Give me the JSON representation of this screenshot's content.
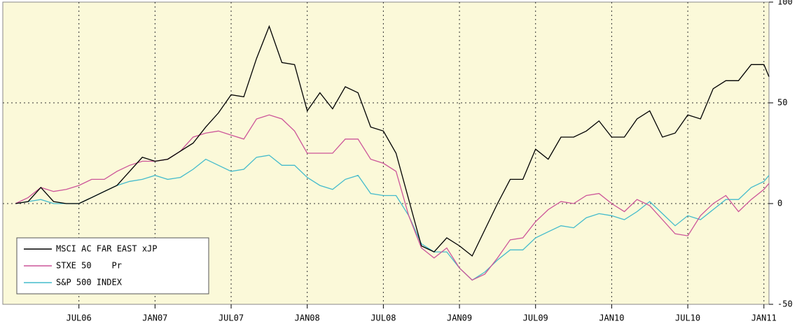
{
  "chart_data": {
    "type": "line",
    "x": [
      1,
      2,
      3,
      4,
      5,
      6,
      7,
      8,
      9,
      10,
      11,
      12,
      13,
      14,
      15,
      16,
      17,
      18,
      19,
      20,
      21,
      22,
      23,
      24,
      25,
      26,
      27,
      28,
      29,
      30,
      31,
      32,
      33,
      34,
      35,
      36,
      37,
      38,
      39,
      40,
      41,
      42,
      43,
      44,
      45,
      46,
      47,
      48,
      49,
      50,
      51,
      52,
      53,
      54,
      55,
      56,
      57,
      58,
      59,
      60,
      60.4
    ],
    "series": [
      {
        "name": "MSCI AC FAR EAST xJP",
        "color": "#000000",
        "values": [
          0,
          1,
          8,
          1,
          0,
          0,
          3,
          6,
          9,
          16,
          23,
          21,
          22,
          26,
          30,
          38,
          45,
          54,
          53,
          72,
          88,
          70,
          69,
          46,
          55,
          47,
          58,
          55,
          38,
          36,
          25,
          2,
          -21,
          -24,
          -17,
          -21,
          -26,
          -13,
          0,
          12,
          12,
          27,
          22,
          33,
          33,
          36,
          41,
          33,
          33,
          42,
          46,
          33,
          35,
          44,
          42,
          57,
          61,
          61,
          69,
          69,
          63
        ]
      },
      {
        "name": "STXE 50    Pr",
        "color": "#cc5599",
        "values": [
          0,
          3,
          8,
          6,
          7,
          9,
          12,
          12,
          16,
          19,
          21,
          21,
          22,
          26,
          33,
          35,
          36,
          34,
          32,
          42,
          44,
          42,
          36,
          25,
          25,
          25,
          32,
          32,
          22,
          20,
          16,
          -6,
          -22,
          -27,
          -22,
          -32,
          -38,
          -35,
          -27,
          -18,
          -17,
          -9,
          -3,
          1,
          0,
          4,
          5,
          0,
          -4,
          2,
          -1,
          -8,
          -15,
          -16,
          -6,
          0,
          4,
          -4,
          2,
          7,
          10
        ]
      },
      {
        "name": "S&P 500 INDEX",
        "color": "#44bbcc",
        "values": [
          0,
          1,
          2,
          0,
          0,
          0,
          3,
          6,
          9,
          11,
          12,
          14,
          12,
          13,
          17,
          22,
          19,
          16,
          17,
          23,
          24,
          19,
          19,
          13,
          9,
          7,
          12,
          14,
          5,
          4,
          4,
          -6,
          -20,
          -24,
          -24,
          -32,
          -38,
          -34,
          -28,
          -23,
          -23,
          -17,
          -14,
          -11,
          -12,
          -7,
          -5,
          -6,
          -8,
          -4,
          1,
          -5,
          -11,
          -6,
          -8,
          -3,
          2,
          2,
          8,
          11,
          14
        ]
      }
    ],
    "xlim": [
      0,
      60.4
    ],
    "xticks": [
      {
        "value": 6,
        "label": "JUL06"
      },
      {
        "value": 12,
        "label": "JAN07"
      },
      {
        "value": 18,
        "label": "JUL07"
      },
      {
        "value": 24,
        "label": "JAN08"
      },
      {
        "value": 30,
        "label": "JUL08"
      },
      {
        "value": 36,
        "label": "JAN09"
      },
      {
        "value": 42,
        "label": "JUL09"
      },
      {
        "value": 48,
        "label": "JAN10"
      },
      {
        "value": 54,
        "label": "JUL10"
      },
      {
        "value": 60,
        "label": "JAN11"
      }
    ],
    "ylim": [
      -50,
      100
    ],
    "yticks": [
      -50,
      0,
      50,
      100
    ],
    "grid": true,
    "legend": "lower left"
  }
}
